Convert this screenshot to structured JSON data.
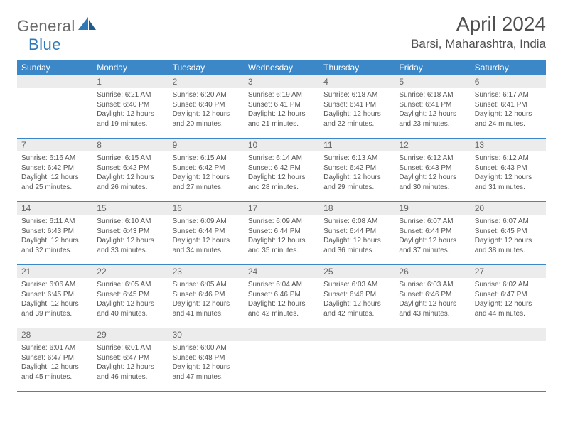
{
  "logo": {
    "text1": "General",
    "text2": "Blue"
  },
  "title": "April 2024",
  "location": "Barsi, Maharashtra, India",
  "colors": {
    "header_bg": "#3b87c8",
    "header_text": "#ffffff",
    "daynum_bg": "#ececec",
    "daynum_text": "#666666",
    "body_text": "#555555",
    "rule": "#3b87c8",
    "logo_gray": "#6b6b6b",
    "logo_blue": "#2f78b8"
  },
  "weekdays": [
    "Sunday",
    "Monday",
    "Tuesday",
    "Wednesday",
    "Thursday",
    "Friday",
    "Saturday"
  ],
  "weeks": [
    [
      {
        "empty": true
      },
      {
        "n": "1",
        "sr": "6:21 AM",
        "ss": "6:40 PM",
        "dl": "12 hours and 19 minutes."
      },
      {
        "n": "2",
        "sr": "6:20 AM",
        "ss": "6:40 PM",
        "dl": "12 hours and 20 minutes."
      },
      {
        "n": "3",
        "sr": "6:19 AM",
        "ss": "6:41 PM",
        "dl": "12 hours and 21 minutes."
      },
      {
        "n": "4",
        "sr": "6:18 AM",
        "ss": "6:41 PM",
        "dl": "12 hours and 22 minutes."
      },
      {
        "n": "5",
        "sr": "6:18 AM",
        "ss": "6:41 PM",
        "dl": "12 hours and 23 minutes."
      },
      {
        "n": "6",
        "sr": "6:17 AM",
        "ss": "6:41 PM",
        "dl": "12 hours and 24 minutes."
      }
    ],
    [
      {
        "n": "7",
        "sr": "6:16 AM",
        "ss": "6:42 PM",
        "dl": "12 hours and 25 minutes."
      },
      {
        "n": "8",
        "sr": "6:15 AM",
        "ss": "6:42 PM",
        "dl": "12 hours and 26 minutes."
      },
      {
        "n": "9",
        "sr": "6:15 AM",
        "ss": "6:42 PM",
        "dl": "12 hours and 27 minutes."
      },
      {
        "n": "10",
        "sr": "6:14 AM",
        "ss": "6:42 PM",
        "dl": "12 hours and 28 minutes."
      },
      {
        "n": "11",
        "sr": "6:13 AM",
        "ss": "6:42 PM",
        "dl": "12 hours and 29 minutes."
      },
      {
        "n": "12",
        "sr": "6:12 AM",
        "ss": "6:43 PM",
        "dl": "12 hours and 30 minutes."
      },
      {
        "n": "13",
        "sr": "6:12 AM",
        "ss": "6:43 PM",
        "dl": "12 hours and 31 minutes."
      }
    ],
    [
      {
        "n": "14",
        "sr": "6:11 AM",
        "ss": "6:43 PM",
        "dl": "12 hours and 32 minutes."
      },
      {
        "n": "15",
        "sr": "6:10 AM",
        "ss": "6:43 PM",
        "dl": "12 hours and 33 minutes."
      },
      {
        "n": "16",
        "sr": "6:09 AM",
        "ss": "6:44 PM",
        "dl": "12 hours and 34 minutes."
      },
      {
        "n": "17",
        "sr": "6:09 AM",
        "ss": "6:44 PM",
        "dl": "12 hours and 35 minutes."
      },
      {
        "n": "18",
        "sr": "6:08 AM",
        "ss": "6:44 PM",
        "dl": "12 hours and 36 minutes."
      },
      {
        "n": "19",
        "sr": "6:07 AM",
        "ss": "6:44 PM",
        "dl": "12 hours and 37 minutes."
      },
      {
        "n": "20",
        "sr": "6:07 AM",
        "ss": "6:45 PM",
        "dl": "12 hours and 38 minutes."
      }
    ],
    [
      {
        "n": "21",
        "sr": "6:06 AM",
        "ss": "6:45 PM",
        "dl": "12 hours and 39 minutes."
      },
      {
        "n": "22",
        "sr": "6:05 AM",
        "ss": "6:45 PM",
        "dl": "12 hours and 40 minutes."
      },
      {
        "n": "23",
        "sr": "6:05 AM",
        "ss": "6:46 PM",
        "dl": "12 hours and 41 minutes."
      },
      {
        "n": "24",
        "sr": "6:04 AM",
        "ss": "6:46 PM",
        "dl": "12 hours and 42 minutes."
      },
      {
        "n": "25",
        "sr": "6:03 AM",
        "ss": "6:46 PM",
        "dl": "12 hours and 42 minutes."
      },
      {
        "n": "26",
        "sr": "6:03 AM",
        "ss": "6:46 PM",
        "dl": "12 hours and 43 minutes."
      },
      {
        "n": "27",
        "sr": "6:02 AM",
        "ss": "6:47 PM",
        "dl": "12 hours and 44 minutes."
      }
    ],
    [
      {
        "n": "28",
        "sr": "6:01 AM",
        "ss": "6:47 PM",
        "dl": "12 hours and 45 minutes."
      },
      {
        "n": "29",
        "sr": "6:01 AM",
        "ss": "6:47 PM",
        "dl": "12 hours and 46 minutes."
      },
      {
        "n": "30",
        "sr": "6:00 AM",
        "ss": "6:48 PM",
        "dl": "12 hours and 47 minutes."
      },
      {
        "empty": true
      },
      {
        "empty": true
      },
      {
        "empty": true
      },
      {
        "empty": true
      }
    ]
  ],
  "labels": {
    "sunrise": "Sunrise:",
    "sunset": "Sunset:",
    "daylight": "Daylight:"
  }
}
